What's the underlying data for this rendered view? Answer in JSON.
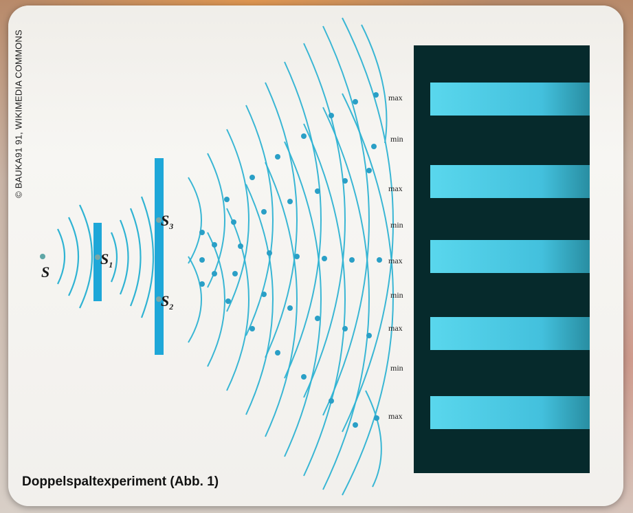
{
  "credit": "© BAUKA91 91, WIKIMEDIA COMMONS",
  "caption": "Doppelspaltexperiment (Abb. 1)",
  "labels": {
    "source": "S",
    "slit1": "S",
    "slit1_sub": "1",
    "slit3": "S",
    "slit3_sub": "3",
    "slit2": "S",
    "slit2_sub": "2"
  },
  "pattern_labels": [
    "max",
    "min",
    "max",
    "min",
    "max",
    "min",
    "max",
    "min",
    "max"
  ],
  "colors": {
    "wave": "#2fb3d3",
    "barrier": "#1ea7d8",
    "screen_dark": "#062a2c",
    "fringe": "#4fd7f0"
  }
}
